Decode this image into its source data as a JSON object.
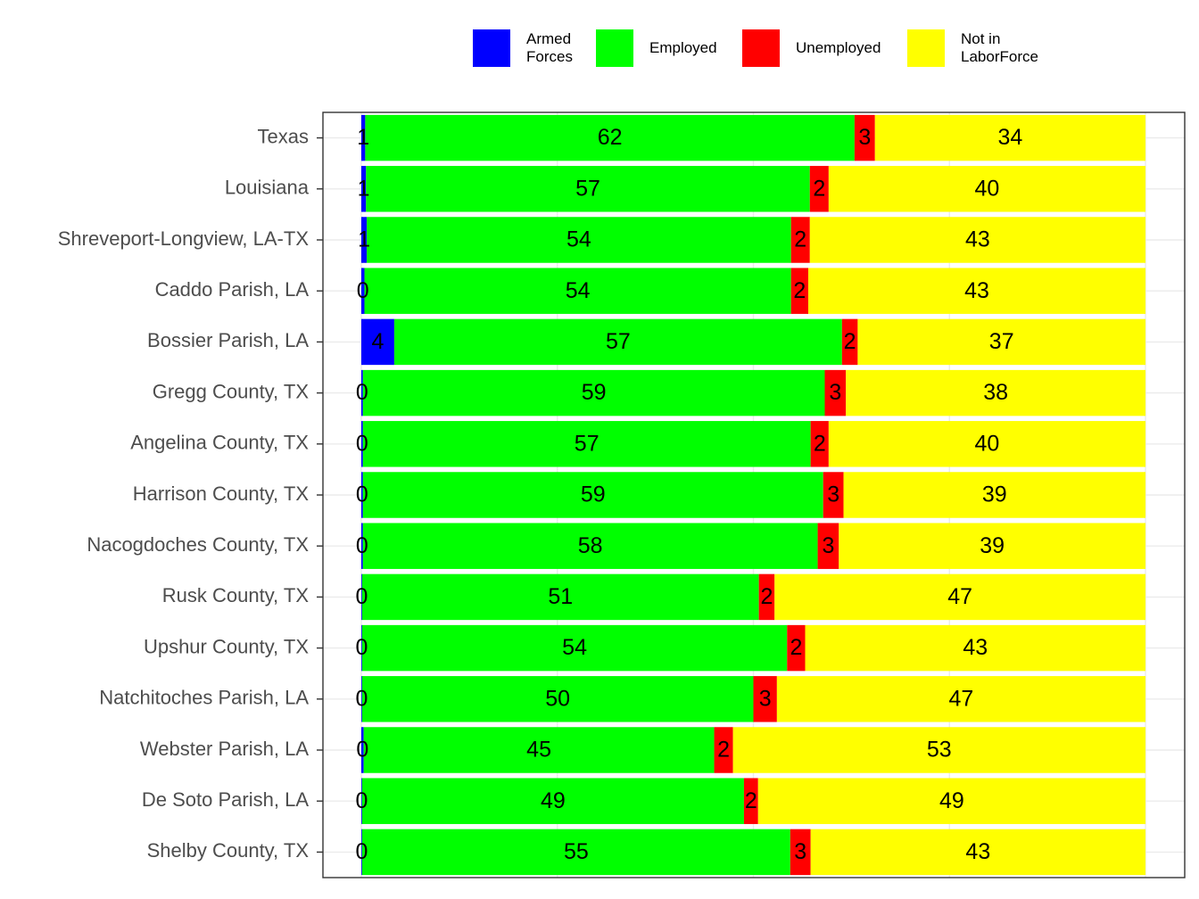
{
  "chart_data": {
    "type": "stacked-bar-horizontal",
    "categories": [
      "Texas",
      "Louisiana",
      "Shreveport-Longview, LA-TX",
      "Caddo Parish, LA",
      "Bossier Parish, LA",
      "Gregg County, TX",
      "Angelina County, TX",
      "Harrison County, TX",
      "Nacogdoches County, TX",
      "Rusk County, TX",
      "Upshur County, TX",
      "Natchitoches Parish, LA",
      "Webster Parish, LA",
      "De Soto Parish, LA",
      "Shelby County, TX"
    ],
    "series": [
      {
        "name": "Armed Forces",
        "color": "#0000ff",
        "values": [
          0.5,
          0.6,
          0.7,
          0.4,
          4.2,
          0.2,
          0.2,
          0.2,
          0.2,
          0.1,
          0.1,
          0.1,
          0.3,
          0.1,
          0.1
        ],
        "value_labels": [
          "1",
          "1",
          "1",
          "0",
          "4",
          "0",
          "0",
          "0",
          "0",
          "0",
          "0",
          "0",
          "0",
          "0",
          "0"
        ]
      },
      {
        "name": "Employed",
        "color": "#00ff00",
        "values": [
          62.4,
          56.6,
          54.1,
          54.4,
          57.1,
          58.9,
          57.1,
          58.7,
          58.0,
          50.6,
          54.2,
          49.9,
          44.7,
          48.7,
          54.6
        ],
        "value_labels": [
          "62",
          "57",
          "54",
          "54",
          "57",
          "59",
          "57",
          "59",
          "58",
          "51",
          "54",
          "50",
          "45",
          "49",
          "55"
        ]
      },
      {
        "name": "Unemployed",
        "color": "#ff0000",
        "values": [
          2.6,
          2.4,
          2.4,
          2.2,
          2.0,
          2.7,
          2.3,
          2.6,
          2.7,
          2.0,
          2.3,
          3.0,
          2.4,
          1.8,
          2.6
        ],
        "value_labels": [
          "3",
          "2",
          "2",
          "2",
          "2",
          "3",
          "2",
          "3",
          "3",
          "2",
          "2",
          "3",
          "2",
          "2",
          "3"
        ]
      },
      {
        "name": "Not in LaborForce",
        "color": "#ffff00",
        "values": [
          34.5,
          40.4,
          42.8,
          43.0,
          36.7,
          38.2,
          40.4,
          38.5,
          39.1,
          47.3,
          43.4,
          47.0,
          52.6,
          49.4,
          42.7
        ],
        "value_labels": [
          "34",
          "40",
          "43",
          "43",
          "37",
          "38",
          "40",
          "39",
          "39",
          "47",
          "43",
          "47",
          "53",
          "49",
          "43"
        ]
      }
    ],
    "xlim": [
      0,
      100
    ],
    "xticks": [
      0,
      25,
      50,
      75,
      100
    ],
    "grid": true,
    "legend": "top"
  }
}
